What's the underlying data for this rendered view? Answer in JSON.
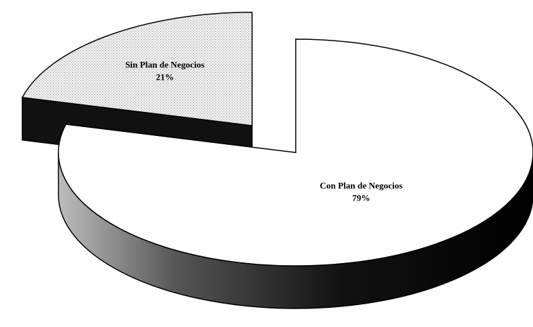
{
  "chart_data": {
    "type": "pie",
    "categories": [
      "Con Plan de Negocios",
      "Sin Plan de Negocios"
    ],
    "values": [
      79,
      21
    ],
    "value_labels": [
      "79%",
      "21%"
    ],
    "colors": [
      "#ffffff",
      "#e4e4e4"
    ],
    "exploded": [
      false,
      true
    ]
  }
}
